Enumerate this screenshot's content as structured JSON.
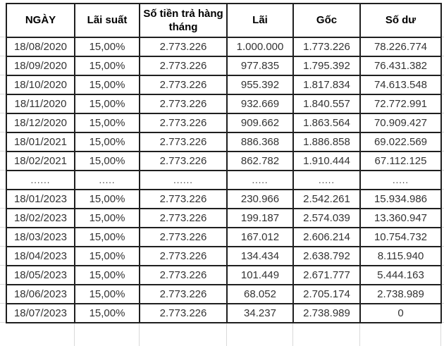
{
  "colors": {
    "border": "#1f1f1f",
    "text": "#333333",
    "header_text": "#000000",
    "gridline": "#d9d9d9",
    "background": "#ffffff"
  },
  "table": {
    "columns": [
      {
        "key": "date",
        "label": "NGÀY"
      },
      {
        "key": "rate",
        "label": "Lãi suất"
      },
      {
        "key": "payment",
        "label": "Số tiền trả hàng tháng"
      },
      {
        "key": "interest",
        "label": "Lãi"
      },
      {
        "key": "principal",
        "label": "Gốc"
      },
      {
        "key": "balance",
        "label": "Số dư"
      }
    ],
    "rows": [
      {
        "type": "data",
        "cells": [
          "18/08/2020",
          "15,00%",
          "2.773.226",
          "1.000.000",
          "1.773.226",
          "78.226.774"
        ]
      },
      {
        "type": "data",
        "cells": [
          "18/09/2020",
          "15,00%",
          "2.773.226",
          "977.835",
          "1.795.392",
          "76.431.382"
        ]
      },
      {
        "type": "data",
        "cells": [
          "18/10/2020",
          "15,00%",
          "2.773.226",
          "955.392",
          "1.817.834",
          "74.613.548"
        ]
      },
      {
        "type": "data",
        "cells": [
          "18/11/2020",
          "15,00%",
          "2.773.226",
          "932.669",
          "1.840.557",
          "72.772.991"
        ]
      },
      {
        "type": "data",
        "cells": [
          "18/12/2020",
          "15,00%",
          "2.773.226",
          "909.662",
          "1.863.564",
          "70.909.427"
        ]
      },
      {
        "type": "data",
        "cells": [
          "18/01/2021",
          "15,00%",
          "2.773.226",
          "886.368",
          "1.886.858",
          "69.022.569"
        ]
      },
      {
        "type": "data",
        "cells": [
          "18/02/2021",
          "15,00%",
          "2.773.226",
          "862.782",
          "1.910.444",
          "67.112.125"
        ]
      },
      {
        "type": "ellipsis",
        "cells": [
          "......",
          ".....",
          "......",
          ".....",
          ".....",
          "....."
        ]
      },
      {
        "type": "data",
        "cells": [
          "18/01/2023",
          "15,00%",
          "2.773.226",
          "230.966",
          "2.542.261",
          "15.934.986"
        ]
      },
      {
        "type": "data",
        "cells": [
          "18/02/2023",
          "15,00%",
          "2.773.226",
          "199.187",
          "2.574.039",
          "13.360.947"
        ]
      },
      {
        "type": "data",
        "cells": [
          "18/03/2023",
          "15,00%",
          "2.773.226",
          "167.012",
          "2.606.214",
          "10.754.732"
        ]
      },
      {
        "type": "data",
        "cells": [
          "18/04/2023",
          "15,00%",
          "2.773.226",
          "134.434",
          "2.638.792",
          "8.115.940"
        ]
      },
      {
        "type": "data",
        "cells": [
          "18/05/2023",
          "15,00%",
          "2.773.226",
          "101.449",
          "2.671.777",
          "5.444.163"
        ]
      },
      {
        "type": "data",
        "cells": [
          "18/06/2023",
          "15,00%",
          "2.773.226",
          "68.052",
          "2.705.174",
          "2.738.989"
        ]
      },
      {
        "type": "data",
        "cells": [
          "18/07/2023",
          "15,00%",
          "2.773.226",
          "34.237",
          "2.738.989",
          "0"
        ]
      }
    ]
  }
}
